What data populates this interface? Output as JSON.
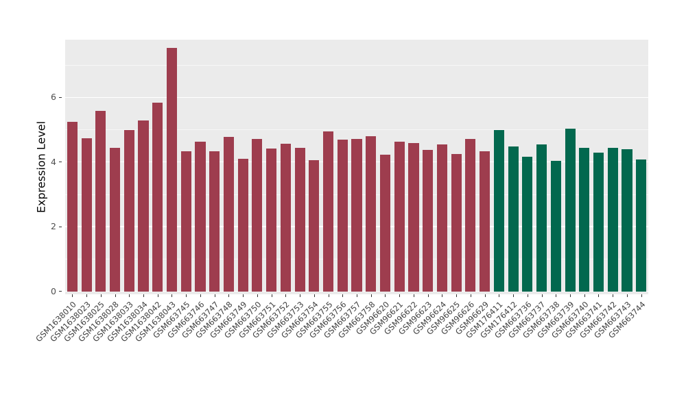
{
  "chart_data": {
    "type": "bar",
    "title": "",
    "xlabel": "",
    "ylabel": "Expression Level",
    "ylim": [
      0,
      7.8
    ],
    "yticks": [
      0,
      2,
      4,
      6
    ],
    "yticks_minor": [
      1,
      3,
      5,
      7
    ],
    "grid": true,
    "legend_position": "none",
    "panel_bg": "#EBEBEB",
    "grid_color": "#FFFFFF",
    "group_colors": {
      "group1": "#9E3D4E",
      "group2": "#02684E"
    },
    "categories": [
      "GSM1638010",
      "GSM1638023",
      "GSM1638025",
      "GSM1638028",
      "GSM1638033",
      "GSM1638034",
      "GSM1638042",
      "GSM1638043",
      "GSM663745",
      "GSM663746",
      "GSM663747",
      "GSM663748",
      "GSM663749",
      "GSM663750",
      "GSM663751",
      "GSM663752",
      "GSM663753",
      "GSM663754",
      "GSM663755",
      "GSM663756",
      "GSM663757",
      "GSM663758",
      "GSM96620",
      "GSM96621",
      "GSM96622",
      "GSM96623",
      "GSM96624",
      "GSM96625",
      "GSM96626",
      "GSM96629",
      "GSM176411",
      "GSM176412",
      "GSM663736",
      "GSM663737",
      "GSM663738",
      "GSM663739",
      "GSM663740",
      "GSM663741",
      "GSM663742",
      "GSM663743",
      "GSM663744"
    ],
    "values": [
      5.25,
      4.75,
      5.6,
      4.45,
      5.0,
      5.3,
      5.85,
      7.55,
      4.35,
      4.65,
      4.35,
      4.78,
      4.12,
      4.72,
      4.42,
      4.58,
      4.45,
      4.07,
      4.95,
      4.7,
      4.72,
      4.82,
      4.25,
      4.65,
      4.6,
      4.38,
      4.55,
      4.27,
      4.72,
      4.35,
      5.0,
      4.5,
      4.18,
      4.55,
      4.05,
      5.05,
      4.45,
      4.3,
      4.45,
      4.4,
      4.1
    ],
    "groups": [
      "group1",
      "group1",
      "group1",
      "group1",
      "group1",
      "group1",
      "group1",
      "group1",
      "group1",
      "group1",
      "group1",
      "group1",
      "group1",
      "group1",
      "group1",
      "group1",
      "group1",
      "group1",
      "group1",
      "group1",
      "group1",
      "group1",
      "group1",
      "group1",
      "group1",
      "group1",
      "group1",
      "group1",
      "group1",
      "group1",
      "group2",
      "group2",
      "group2",
      "group2",
      "group2",
      "group2",
      "group2",
      "group2",
      "group2",
      "group2",
      "group2"
    ]
  }
}
